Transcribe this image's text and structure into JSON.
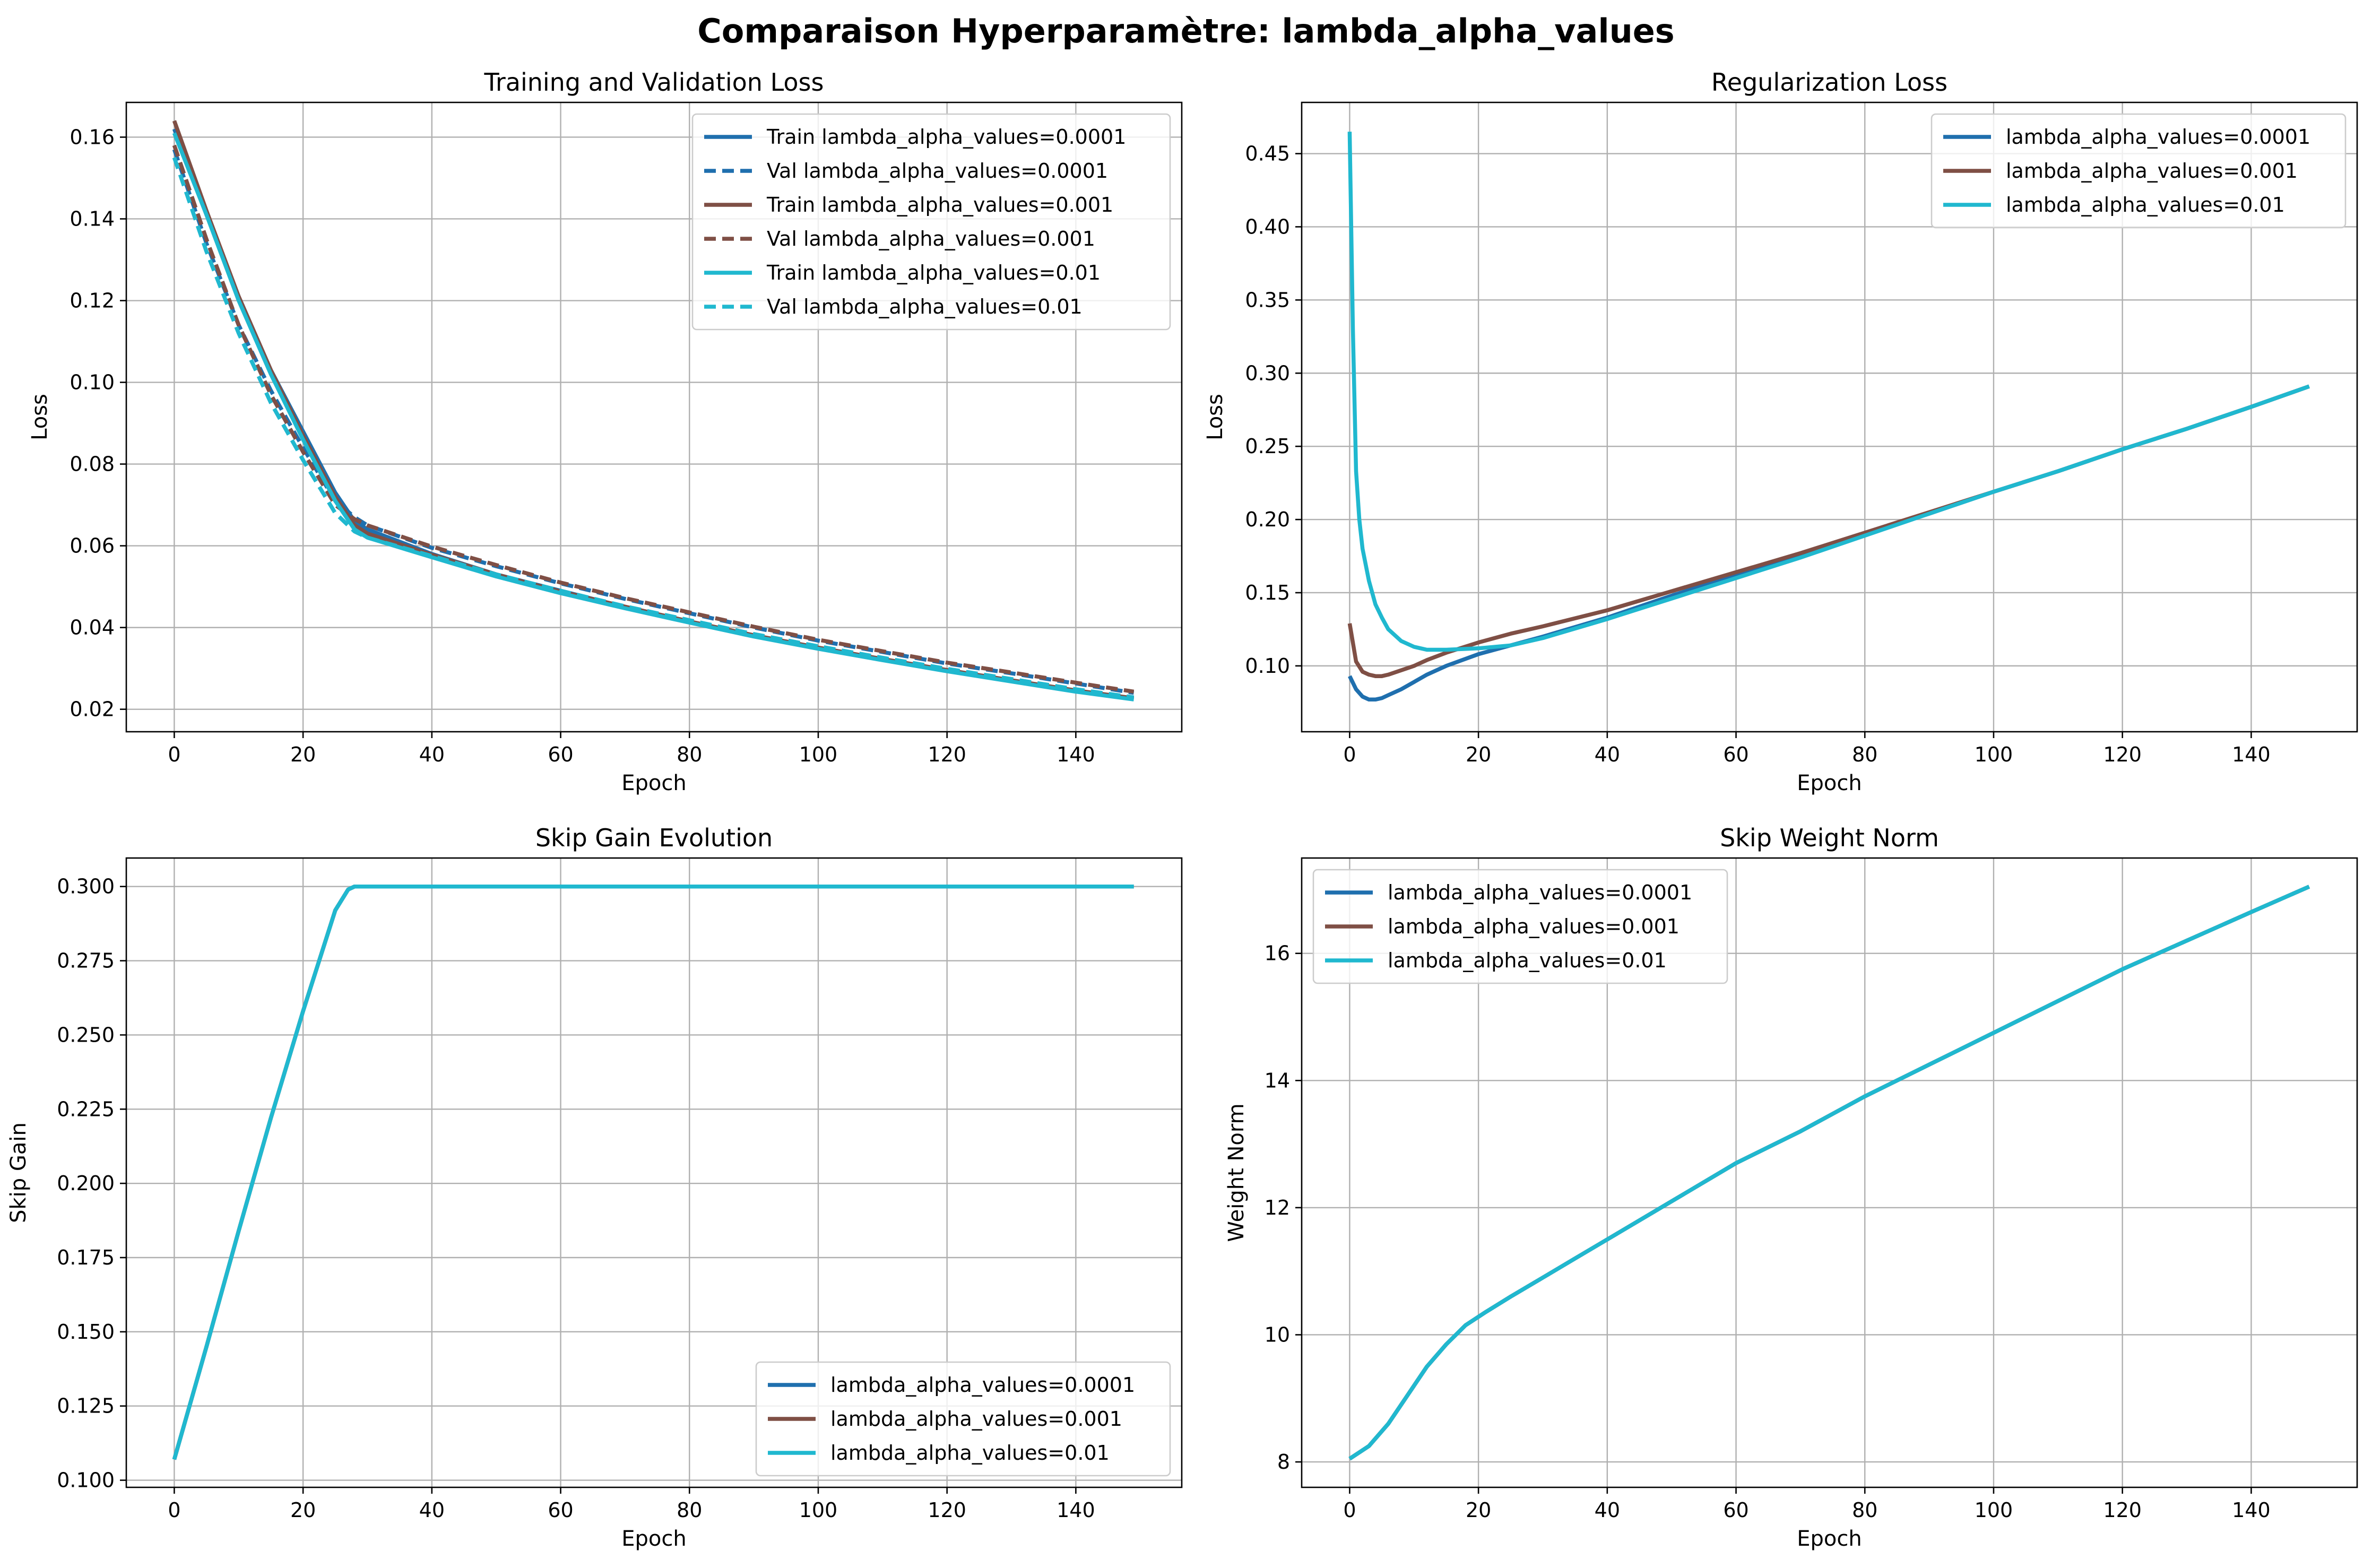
{
  "suptitle": "Comparaison Hyperparamètre: lambda_alpha_values",
  "colors": {
    "c1": "#1f6fae",
    "c2": "#7f4f45",
    "c3": "#20b8cf"
  },
  "chart_data": [
    {
      "type": "line",
      "title": "Training and Validation Loss",
      "xlabel": "Epoch",
      "ylabel": "Loss",
      "xlim": [
        -7.45,
        156.45
      ],
      "ylim": [
        0.0145,
        0.1685
      ],
      "xticks": [
        0,
        20,
        40,
        60,
        80,
        100,
        120,
        140
      ],
      "yticks": [
        0.02,
        0.04,
        0.06,
        0.08,
        0.1,
        0.12,
        0.14,
        0.16
      ],
      "ytick_labels": [
        "0.02",
        "0.04",
        "0.06",
        "0.08",
        "0.10",
        "0.12",
        "0.14",
        "0.16"
      ],
      "grid": true,
      "legend_position": "upper right",
      "series": [
        {
          "name": "Train lambda_alpha_values=0.0001",
          "color": "#1f6fae",
          "dash": false,
          "x": [
            0,
            5,
            10,
            15,
            20,
            25,
            28,
            30,
            40,
            50,
            60,
            70,
            80,
            90,
            100,
            110,
            120,
            130,
            140,
            149
          ],
          "y": [
            0.162,
            0.141,
            0.121,
            0.103,
            0.088,
            0.073,
            0.066,
            0.064,
            0.058,
            0.053,
            0.049,
            0.045,
            0.0415,
            0.038,
            0.035,
            0.0322,
            0.0295,
            0.027,
            0.0245,
            0.0225
          ]
        },
        {
          "name": "Val lambda_alpha_values=0.0001",
          "color": "#1f6fae",
          "dash": true,
          "x": [
            0,
            5,
            10,
            15,
            20,
            25,
            28,
            30,
            40,
            50,
            60,
            70,
            80,
            90,
            100,
            110,
            120,
            130,
            140,
            149
          ],
          "y": [
            0.157,
            0.134,
            0.114,
            0.098,
            0.084,
            0.071,
            0.067,
            0.065,
            0.0595,
            0.055,
            0.0508,
            0.047,
            0.0435,
            0.04,
            0.0368,
            0.034,
            0.0312,
            0.0288,
            0.0263,
            0.024
          ]
        },
        {
          "name": "Train lambda_alpha_values=0.001",
          "color": "#7f4f45",
          "dash": false,
          "x": [
            0,
            5,
            10,
            15,
            20,
            25,
            28,
            30,
            40,
            50,
            60,
            70,
            80,
            90,
            100,
            110,
            120,
            130,
            140,
            149
          ],
          "y": [
            0.164,
            0.142,
            0.121,
            0.103,
            0.087,
            0.072,
            0.065,
            0.063,
            0.0578,
            0.053,
            0.0488,
            0.0451,
            0.0415,
            0.0381,
            0.0351,
            0.0323,
            0.0296,
            0.0271,
            0.0246,
            0.0227
          ]
        },
        {
          "name": "Val lambda_alpha_values=0.001",
          "color": "#7f4f45",
          "dash": true,
          "x": [
            0,
            5,
            10,
            15,
            20,
            25,
            28,
            30,
            40,
            50,
            60,
            70,
            80,
            90,
            100,
            110,
            120,
            130,
            140,
            149
          ],
          "y": [
            0.158,
            0.135,
            0.114,
            0.097,
            0.083,
            0.07,
            0.0665,
            0.065,
            0.0598,
            0.0553,
            0.051,
            0.0472,
            0.0437,
            0.0402,
            0.037,
            0.0342,
            0.0314,
            0.029,
            0.0265,
            0.0243
          ]
        },
        {
          "name": "Train lambda_alpha_values=0.01",
          "color": "#20b8cf",
          "dash": false,
          "x": [
            0,
            5,
            10,
            15,
            20,
            25,
            28,
            30,
            40,
            50,
            60,
            70,
            80,
            90,
            100,
            110,
            120,
            130,
            140,
            149
          ],
          "y": [
            0.161,
            0.141,
            0.12,
            0.102,
            0.086,
            0.071,
            0.064,
            0.062,
            0.0572,
            0.0525,
            0.0484,
            0.0447,
            0.0412,
            0.0378,
            0.0348,
            0.032,
            0.0293,
            0.0268,
            0.0243,
            0.0224
          ]
        },
        {
          "name": "Val lambda_alpha_values=0.01",
          "color": "#20b8cf",
          "dash": true,
          "x": [
            0,
            5,
            10,
            15,
            20,
            25,
            28,
            30,
            40,
            50,
            60,
            70,
            80,
            90,
            100,
            110,
            120,
            130,
            140,
            149
          ],
          "y": [
            0.155,
            0.132,
            0.112,
            0.095,
            0.081,
            0.068,
            0.0635,
            0.062,
            0.0575,
            0.053,
            0.049,
            0.0452,
            0.0418,
            0.0384,
            0.0354,
            0.0326,
            0.0299,
            0.0274,
            0.0249,
            0.0229
          ]
        }
      ]
    },
    {
      "type": "line",
      "title": "Regularization Loss",
      "xlabel": "Epoch",
      "ylabel": "Loss",
      "xlim": [
        -7.45,
        156.45
      ],
      "ylim": [
        0.055,
        0.485
      ],
      "xticks": [
        0,
        20,
        40,
        60,
        80,
        100,
        120,
        140
      ],
      "yticks": [
        0.1,
        0.15,
        0.2,
        0.25,
        0.3,
        0.35,
        0.4,
        0.45
      ],
      "ytick_labels": [
        "0.10",
        "0.15",
        "0.20",
        "0.25",
        "0.30",
        "0.35",
        "0.40",
        "0.45"
      ],
      "grid": true,
      "legend_position": "upper right",
      "series": [
        {
          "name": "lambda_alpha_values=0.0001",
          "color": "#1f6fae",
          "dash": false,
          "x": [
            0,
            1,
            2,
            3,
            4,
            5,
            6,
            8,
            10,
            12,
            15,
            20,
            25,
            30,
            40,
            50,
            60,
            70,
            80,
            90,
            100,
            110,
            120,
            130,
            140,
            149
          ],
          "y": [
            0.093,
            0.084,
            0.079,
            0.077,
            0.077,
            0.078,
            0.08,
            0.084,
            0.089,
            0.094,
            0.1,
            0.108,
            0.114,
            0.12,
            0.133,
            0.148,
            0.162,
            0.176,
            0.19,
            0.204,
            0.219,
            0.233,
            0.248,
            0.262,
            0.277,
            0.291
          ]
        },
        {
          "name": "lambda_alpha_values=0.001",
          "color": "#7f4f45",
          "dash": false,
          "x": [
            0,
            1,
            2,
            3,
            4,
            5,
            6,
            8,
            10,
            12,
            15,
            20,
            25,
            30,
            40,
            50,
            60,
            70,
            80,
            90,
            100,
            110,
            120,
            130,
            140,
            149
          ],
          "y": [
            0.129,
            0.103,
            0.096,
            0.094,
            0.093,
            0.093,
            0.094,
            0.097,
            0.1,
            0.104,
            0.109,
            0.116,
            0.122,
            0.127,
            0.138,
            0.151,
            0.164,
            0.177,
            0.191,
            0.205,
            0.219,
            0.233,
            0.248,
            0.262,
            0.277,
            0.291
          ]
        },
        {
          "name": "lambda_alpha_values=0.01",
          "color": "#20b8cf",
          "dash": false,
          "x": [
            0,
            0.5,
            1,
            1.5,
            2,
            3,
            4,
            5,
            6,
            8,
            10,
            12,
            15,
            20,
            25,
            30,
            40,
            50,
            60,
            70,
            80,
            90,
            100,
            110,
            120,
            130,
            140,
            149
          ],
          "y": [
            0.465,
            0.33,
            0.233,
            0.2,
            0.18,
            0.158,
            0.142,
            0.133,
            0.125,
            0.117,
            0.113,
            0.111,
            0.111,
            0.112,
            0.114,
            0.119,
            0.132,
            0.146,
            0.16,
            0.174,
            0.189,
            0.204,
            0.219,
            0.233,
            0.248,
            0.262,
            0.277,
            0.291
          ]
        }
      ]
    },
    {
      "type": "line",
      "title": "Skip Gain Evolution",
      "xlabel": "Epoch",
      "ylabel": "Skip Gain",
      "xlim": [
        -7.45,
        156.45
      ],
      "ylim": [
        0.0976,
        0.3096
      ],
      "xticks": [
        0,
        20,
        40,
        60,
        80,
        100,
        120,
        140
      ],
      "yticks": [
        0.1,
        0.125,
        0.15,
        0.175,
        0.2,
        0.225,
        0.25,
        0.275,
        0.3
      ],
      "ytick_labels": [
        "0.100",
        "0.125",
        "0.150",
        "0.175",
        "0.200",
        "0.225",
        "0.250",
        "0.275",
        "0.300"
      ],
      "grid": true,
      "legend_position": "lower right",
      "series": [
        {
          "name": "lambda_alpha_values=0.0001",
          "color": "#1f6fae",
          "dash": false,
          "x": [
            0,
            5,
            10,
            15,
            20,
            25,
            27,
            28,
            30,
            60,
            90,
            120,
            149
          ],
          "y": [
            0.107,
            0.145,
            0.184,
            0.222,
            0.258,
            0.292,
            0.299,
            0.3,
            0.3,
            0.3,
            0.3,
            0.3,
            0.3
          ]
        },
        {
          "name": "lambda_alpha_values=0.001",
          "color": "#7f4f45",
          "dash": false,
          "x": [
            0,
            5,
            10,
            15,
            20,
            25,
            27,
            28,
            30,
            60,
            90,
            120,
            149
          ],
          "y": [
            0.107,
            0.145,
            0.184,
            0.222,
            0.258,
            0.292,
            0.299,
            0.3,
            0.3,
            0.3,
            0.3,
            0.3,
            0.3
          ]
        },
        {
          "name": "lambda_alpha_values=0.01",
          "color": "#20b8cf",
          "dash": false,
          "x": [
            0,
            5,
            10,
            15,
            20,
            25,
            27,
            28,
            30,
            60,
            90,
            120,
            149
          ],
          "y": [
            0.107,
            0.145,
            0.184,
            0.222,
            0.258,
            0.292,
            0.299,
            0.3,
            0.3,
            0.3,
            0.3,
            0.3,
            0.3
          ]
        }
      ]
    },
    {
      "type": "line",
      "title": "Skip Weight Norm",
      "xlabel": "Epoch",
      "ylabel": "Weight Norm",
      "xlim": [
        -7.45,
        156.45
      ],
      "ylim": [
        7.6,
        17.5
      ],
      "xticks": [
        0,
        20,
        40,
        60,
        80,
        100,
        120,
        140
      ],
      "yticks": [
        8,
        10,
        12,
        14,
        16
      ],
      "ytick_labels": [
        "8",
        "10",
        "12",
        "14",
        "16"
      ],
      "grid": true,
      "legend_position": "upper left",
      "series": [
        {
          "name": "lambda_alpha_values=0.0001",
          "color": "#1f6fae",
          "dash": false,
          "x": [
            0,
            3,
            6,
            9,
            12,
            15,
            18,
            21,
            25,
            30,
            35,
            40,
            50,
            60,
            70,
            80,
            90,
            100,
            110,
            120,
            130,
            140,
            149
          ],
          "y": [
            8.05,
            8.25,
            8.6,
            9.05,
            9.5,
            9.85,
            10.15,
            10.35,
            10.6,
            10.9,
            11.2,
            11.5,
            12.1,
            12.7,
            13.2,
            13.75,
            14.25,
            14.75,
            15.25,
            15.75,
            16.2,
            16.65,
            17.05
          ]
        },
        {
          "name": "lambda_alpha_values=0.001",
          "color": "#7f4f45",
          "dash": false,
          "x": [
            0,
            3,
            6,
            9,
            12,
            15,
            18,
            21,
            25,
            30,
            35,
            40,
            50,
            60,
            70,
            80,
            90,
            100,
            110,
            120,
            130,
            140,
            149
          ],
          "y": [
            8.05,
            8.25,
            8.6,
            9.05,
            9.5,
            9.85,
            10.15,
            10.35,
            10.6,
            10.9,
            11.2,
            11.5,
            12.1,
            12.7,
            13.2,
            13.75,
            14.25,
            14.75,
            15.25,
            15.75,
            16.2,
            16.65,
            17.05
          ]
        },
        {
          "name": "lambda_alpha_values=0.01",
          "color": "#20b8cf",
          "dash": false,
          "x": [
            0,
            3,
            6,
            9,
            12,
            15,
            18,
            21,
            25,
            30,
            35,
            40,
            50,
            60,
            70,
            80,
            90,
            100,
            110,
            120,
            130,
            140,
            149
          ],
          "y": [
            8.05,
            8.25,
            8.6,
            9.05,
            9.5,
            9.85,
            10.15,
            10.35,
            10.6,
            10.9,
            11.2,
            11.5,
            12.1,
            12.7,
            13.2,
            13.75,
            14.25,
            14.75,
            15.25,
            15.75,
            16.2,
            16.65,
            17.05
          ]
        }
      ]
    }
  ]
}
